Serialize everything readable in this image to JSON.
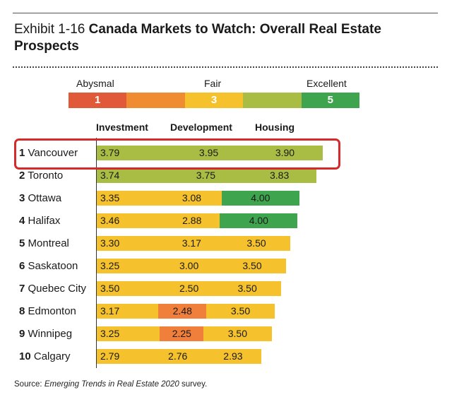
{
  "title": {
    "label": "Exhibit 1-16",
    "main": "Canada Markets to Watch: Overall Real Estate Prospects"
  },
  "scale": {
    "labels": [
      "Abysmal",
      "Fair",
      "Excellent"
    ],
    "segments": [
      {
        "text": "1",
        "color": "#e05a3a"
      },
      {
        "text": "",
        "color": "#ef8c32"
      },
      {
        "text": "3",
        "color": "#f5c22e"
      },
      {
        "text": "",
        "color": "#a9bd45"
      },
      {
        "text": "5",
        "color": "#3fa44e"
      }
    ]
  },
  "headers": [
    "Investment",
    "Development",
    "Housing"
  ],
  "source": {
    "prefix": "Source: ",
    "italic": "Emerging Trends in Real Estate 2020",
    "suffix": " survey."
  },
  "colors": {
    "lt_2_5": "#ef7f3a",
    "2_5_to_3_5": "#f5c22e",
    "3_5_to_4": "#a9bd45",
    "ge_4": "#3fa44e",
    "highlight": "#d42a2a"
  },
  "chart_data": {
    "type": "bar",
    "stacked": true,
    "categories": [
      "Vancouver",
      "Toronto",
      "Ottawa",
      "Halifax",
      "Montreal",
      "Saskatoon",
      "Quebec City",
      "Edmonton",
      "Winnipeg",
      "Calgary"
    ],
    "ranks": [
      "1",
      "2",
      "3",
      "4",
      "5",
      "6",
      "7",
      "8",
      "9",
      "10"
    ],
    "series": [
      {
        "name": "Investment",
        "values": [
          3.79,
          3.74,
          3.35,
          3.46,
          3.3,
          3.25,
          3.5,
          3.17,
          3.25,
          2.79
        ]
      },
      {
        "name": "Development",
        "values": [
          3.95,
          3.75,
          3.08,
          2.88,
          3.17,
          3.0,
          2.5,
          2.48,
          2.25,
          2.76
        ]
      },
      {
        "name": "Housing",
        "values": [
          3.9,
          3.83,
          4.0,
          4.0,
          3.5,
          3.5,
          3.5,
          3.5,
          3.5,
          2.93
        ]
      }
    ],
    "labels": [
      [
        "3.79",
        "3.95",
        "3.90"
      ],
      [
        "3.74",
        "3.75",
        "3.83"
      ],
      [
        "3.35",
        "3.08",
        "4.00"
      ],
      [
        "3.46",
        "2.88",
        "4.00"
      ],
      [
        "3.30",
        "3.17",
        "3.50"
      ],
      [
        "3.25",
        "3.00",
        "3.50"
      ],
      [
        "3.50",
        "2.50",
        "3.50"
      ],
      [
        "3.17",
        "2.48",
        "3.50"
      ],
      [
        "3.25",
        "2.25",
        "3.50"
      ],
      [
        "2.79",
        "2.76",
        "2.93"
      ]
    ],
    "scale_range": [
      1,
      5
    ],
    "highlighted_category": "Vancouver"
  }
}
